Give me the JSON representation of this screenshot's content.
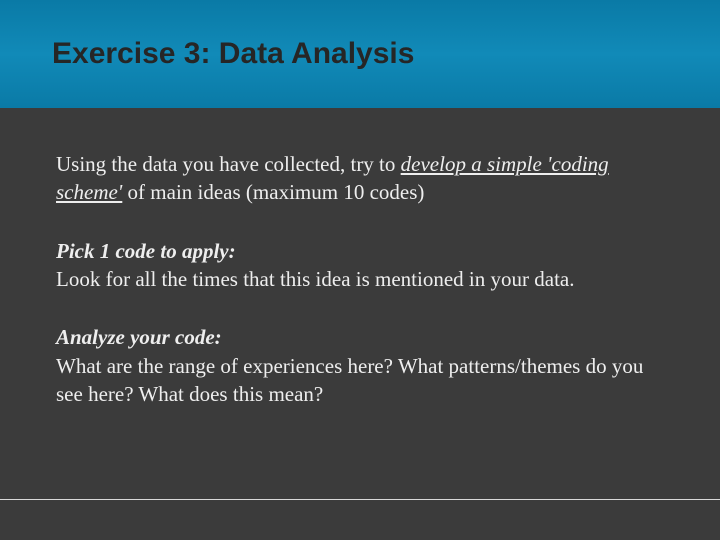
{
  "colors": {
    "background": "#3b3b3b",
    "band_gradient_top": "#0a7aa6",
    "band_gradient_mid": "#118ab8",
    "title_text": "#262626",
    "body_text": "#eeeeee",
    "rule": "#d9d9d9"
  },
  "typography": {
    "title_font": "Arial",
    "title_size_pt": 22,
    "title_weight": "bold",
    "body_font": "Georgia",
    "body_size_pt": 16
  },
  "title": "Exercise 3:  Data Analysis",
  "intro": {
    "pre": "Using the data you have collected, try to ",
    "underlined": "develop a simple 'coding scheme'",
    "post": " of main ideas (maximum 10 codes)"
  },
  "section1": {
    "heading": "Pick 1 code to apply:",
    "body": "Look for all the times that this idea is mentioned in your data."
  },
  "section2": {
    "heading": "Analyze your code:",
    "body": "What are the range of experiences here? What patterns/themes do you see here? What does this mean?"
  }
}
